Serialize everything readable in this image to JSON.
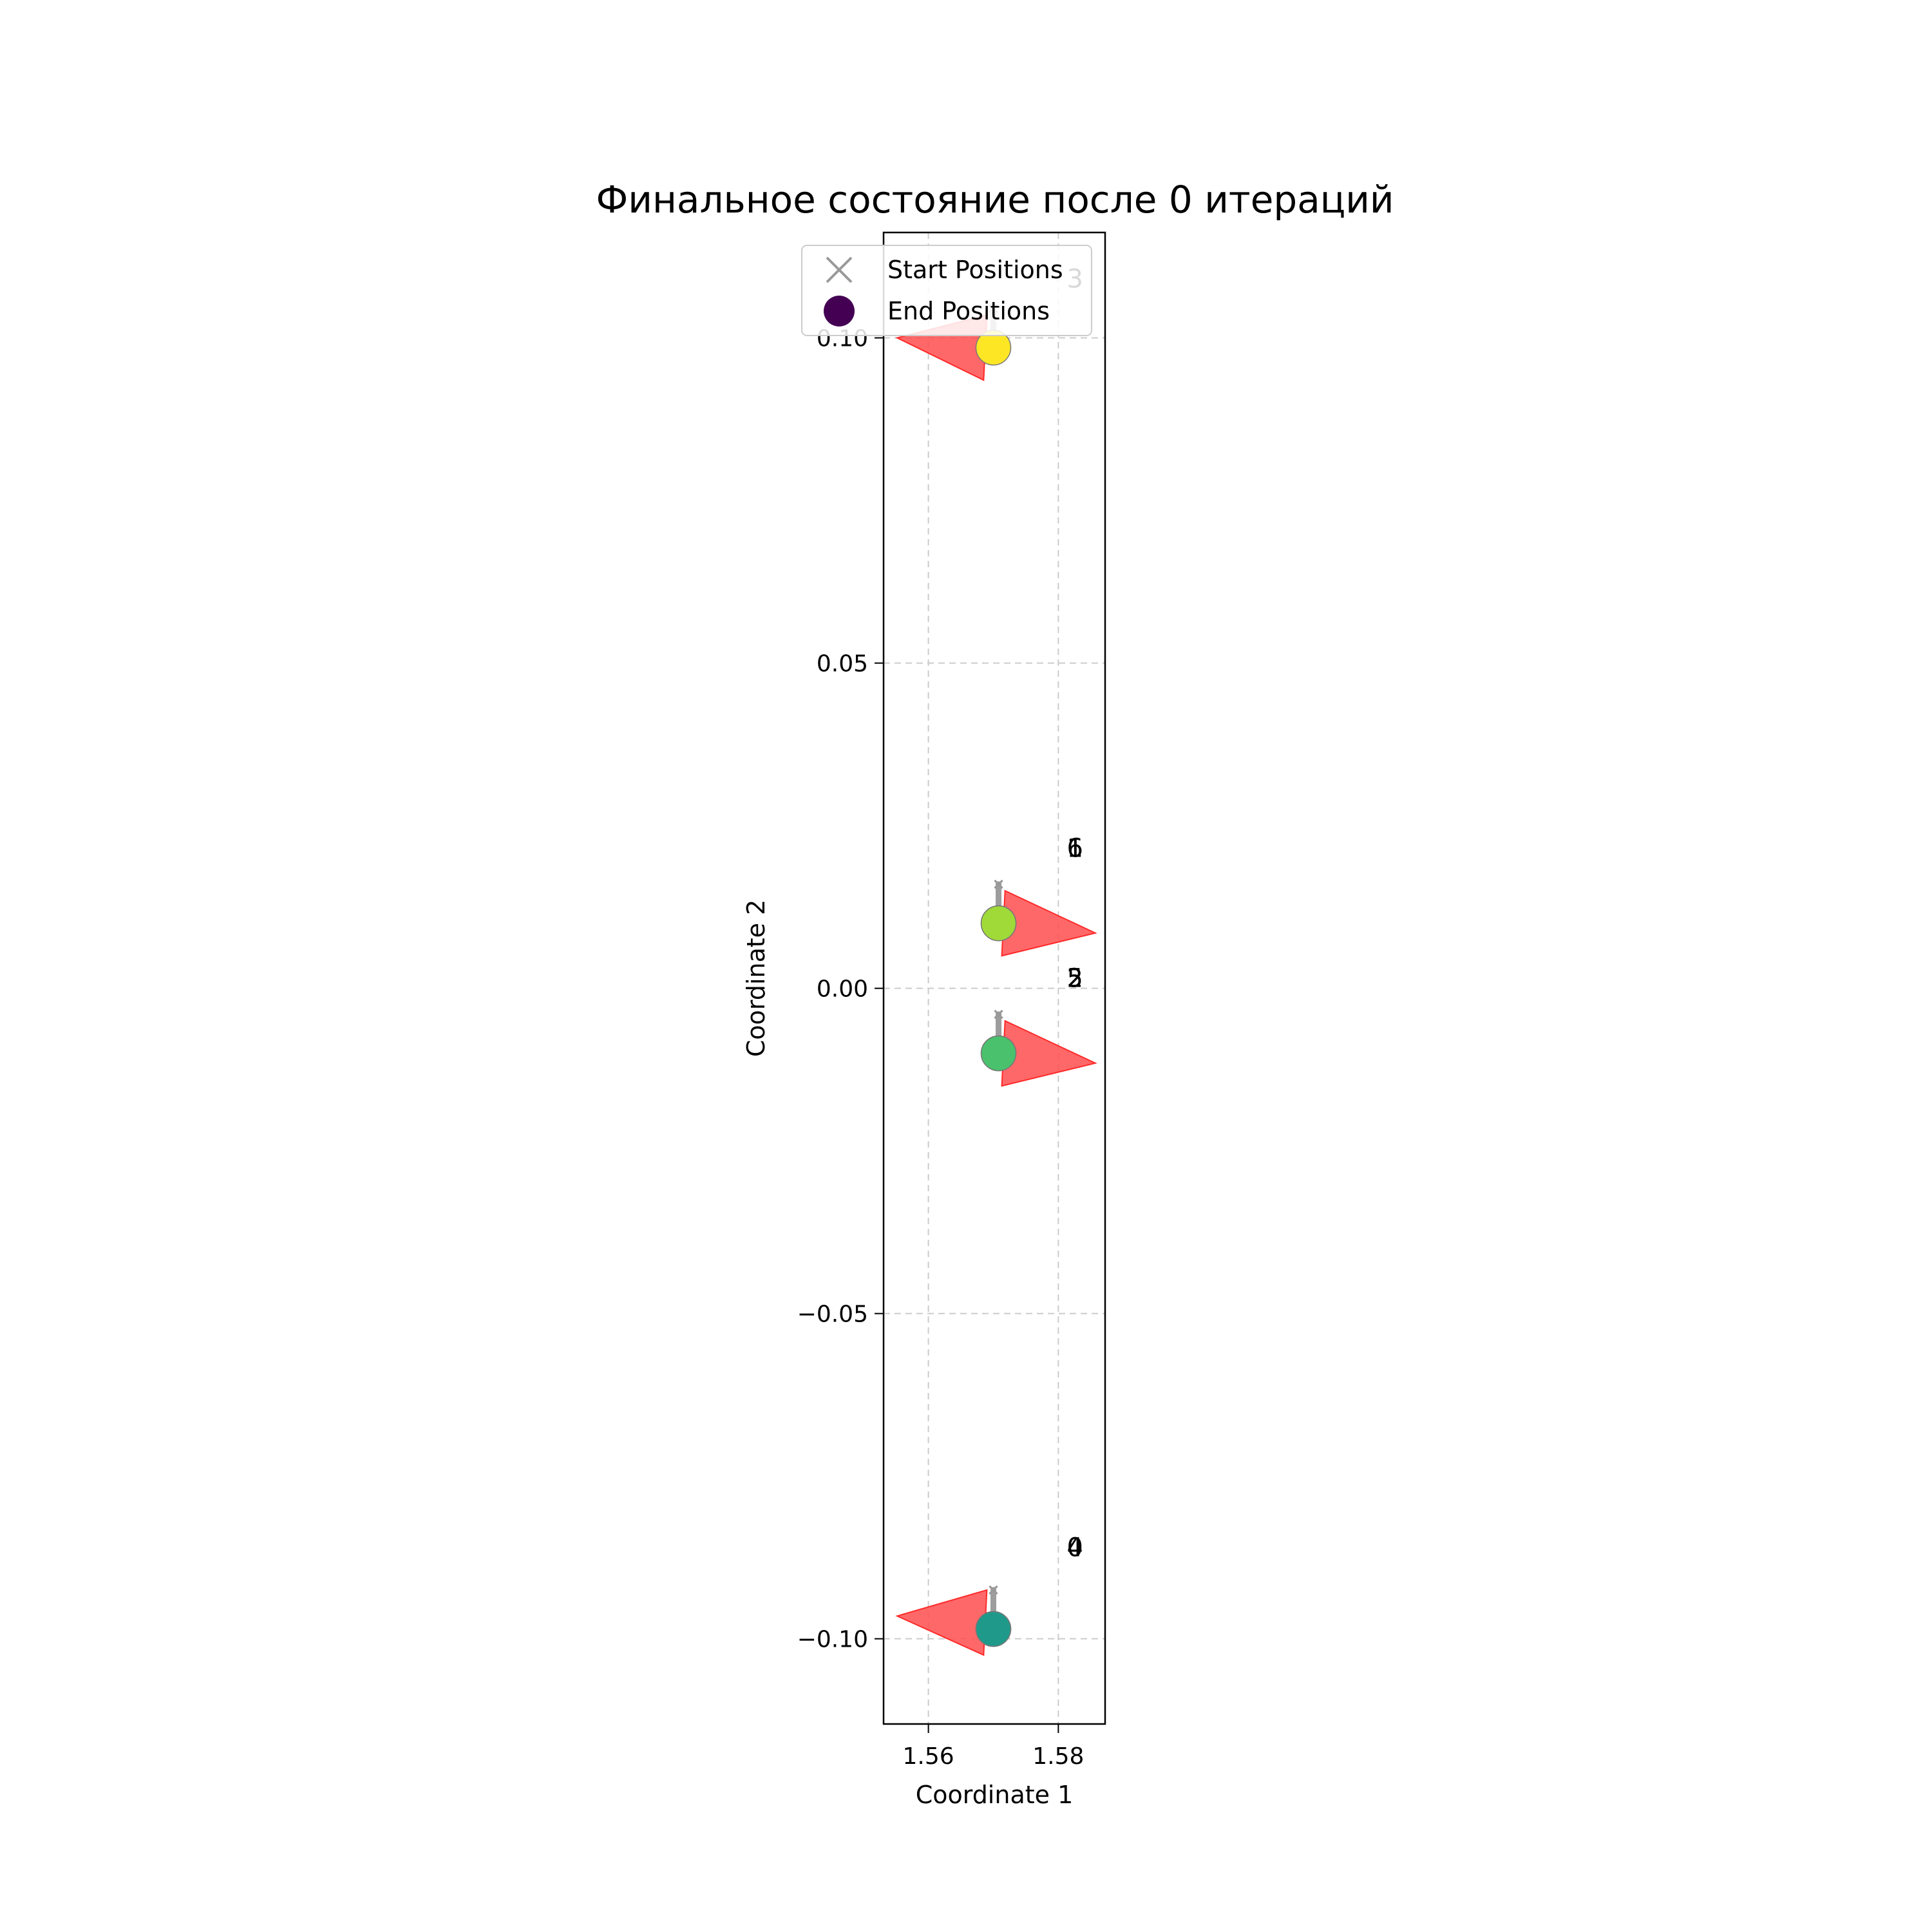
{
  "chart_data": {
    "type": "scatter",
    "title": "Финальное состояние после 0 итераций",
    "xlabel": "Coordinate 1",
    "ylabel": "Coordinate 2",
    "xlim": [
      1.5531,
      1.5872
    ],
    "ylim": [
      -0.1131,
      0.1162
    ],
    "xticks": [
      1.56,
      1.58
    ],
    "yticks": [
      -0.1,
      -0.05,
      0.0,
      0.05,
      0.1
    ],
    "grid": true,
    "legend": {
      "placement": "top-left",
      "entries": [
        {
          "label": "Start Positions",
          "marker": "x",
          "color": "#999999"
        },
        {
          "label": "End Positions",
          "marker": "circle",
          "color": "#440154"
        }
      ]
    },
    "colors": {
      "triangle": "#ff4d4d",
      "trail": "#999999",
      "grid": "#cccccc"
    },
    "agents": [
      {
        "id": "0",
        "end": [
          1.57,
          -0.0985
        ],
        "start": [
          1.57,
          -0.0925
        ],
        "color": "#21918c"
      },
      {
        "id": "1",
        "end": [
          1.5708,
          0.01
        ],
        "start": [
          1.5708,
          0.016
        ],
        "color": "#a0da39"
      },
      {
        "id": "2",
        "end": [
          1.5708,
          -0.01
        ],
        "start": [
          1.5708,
          -0.004
        ],
        "color": "#4ac16d"
      },
      {
        "id": "3",
        "end": [
          1.57,
          0.0985
        ],
        "start": [
          1.57,
          0.1045
        ],
        "color": "#fde725"
      },
      {
        "id": "4",
        "end": [
          1.57,
          -0.0985
        ],
        "start": [
          1.57,
          -0.0925
        ],
        "color": "#1f9a8a"
      },
      {
        "id": "5",
        "end": [
          1.5708,
          -0.01
        ],
        "start": [
          1.5708,
          -0.004
        ],
        "color": "#4ac16d"
      },
      {
        "id": "6",
        "end": [
          1.5708,
          0.01
        ],
        "start": [
          1.5708,
          0.016
        ],
        "color": "#a0da39"
      }
    ],
    "labels": [
      {
        "text": "0",
        "x": 1.5813,
        "y": -0.086
      },
      {
        "text": "4",
        "x": 1.5813,
        "y": -0.086
      },
      {
        "text": "2",
        "x": 1.5813,
        "y": 0.0015
      },
      {
        "text": "5",
        "x": 1.5813,
        "y": 0.0015
      },
      {
        "text": "1",
        "x": 1.5813,
        "y": 0.0215
      },
      {
        "text": "6",
        "x": 1.5813,
        "y": 0.0215
      },
      {
        "text": "3",
        "x": 1.5813,
        "y": 0.109
      }
    ],
    "triangles": [
      {
        "points": [
          [
            1.5685,
            -0.1025
          ],
          [
            1.569,
            -0.0925
          ],
          [
            1.5552,
            -0.0965
          ]
        ]
      },
      {
        "points": [
          [
            1.5713,
            0.005
          ],
          [
            1.5718,
            0.015
          ],
          [
            1.5857,
            0.0085
          ]
        ]
      },
      {
        "points": [
          [
            1.5713,
            -0.015
          ],
          [
            1.5718,
            -0.005
          ],
          [
            1.5857,
            -0.0115
          ]
        ]
      },
      {
        "points": [
          [
            1.5685,
            0.0935
          ],
          [
            1.569,
            0.1035
          ],
          [
            1.5552,
            0.1
          ]
        ]
      }
    ]
  }
}
